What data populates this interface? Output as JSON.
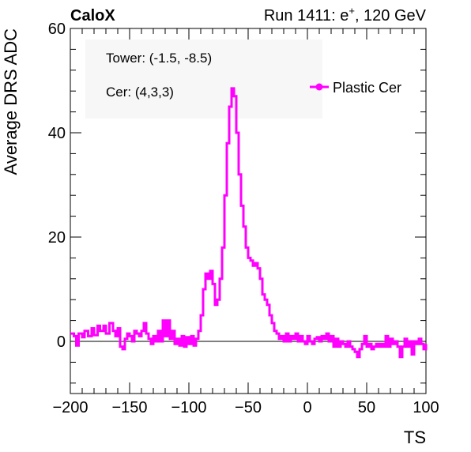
{
  "header": {
    "left": "CaloX",
    "run_prefix": "Run 1411: e",
    "run_sup": "+",
    "run_suffix": ", 120 GeV"
  },
  "annotations": {
    "tower": "Tower: (-1.5, -8.5)",
    "cer": "Cer: (4,3,3)"
  },
  "chart_data": {
    "type": "line",
    "title": "",
    "xlabel": "TS",
    "ylabel": "Average DRS ADC",
    "xlim": [
      -200,
      100
    ],
    "ylim": [
      -10,
      60
    ],
    "x_ticks": [
      -200,
      -150,
      -100,
      -50,
      0,
      50,
      100
    ],
    "x_tick_labels": [
      "−200",
      "−150",
      "−100",
      "−50",
      "0",
      "50",
      "100"
    ],
    "y_ticks": [
      0,
      20,
      40,
      60
    ],
    "y_tick_labels": [
      "0",
      "20",
      "40",
      "60"
    ],
    "legend_position": "top-right",
    "reference_line_y": 0,
    "series": [
      {
        "name": "Plastic Cer",
        "color": "#ff00ff",
        "points": [
          [
            -200,
            1.5
          ],
          [
            -197,
            1.0
          ],
          [
            -195,
            -0.8
          ],
          [
            -193,
            1.5
          ],
          [
            -190,
            0.8
          ],
          [
            -188,
            2.0
          ],
          [
            -185,
            1.0
          ],
          [
            -182,
            2.5
          ],
          [
            -180,
            1.2
          ],
          [
            -177,
            3.0
          ],
          [
            -175,
            2.0
          ],
          [
            -172,
            3.0
          ],
          [
            -170,
            1.5
          ],
          [
            -167,
            3.5
          ],
          [
            -164,
            2.0
          ],
          [
            -162,
            1.0
          ],
          [
            -160,
            2.5
          ],
          [
            -158,
            -1.0
          ],
          [
            -156,
            -1.5
          ],
          [
            -154,
            0.5
          ],
          [
            -152,
            1.5
          ],
          [
            -150,
            1.0
          ],
          [
            -148,
            0.0
          ],
          [
            -146,
            2.0
          ],
          [
            -144,
            1.5
          ],
          [
            -142,
            1.0
          ],
          [
            -140,
            2.0
          ],
          [
            -138,
            3.5
          ],
          [
            -136,
            1.5
          ],
          [
            -134,
            0.5
          ],
          [
            -132,
            -0.5
          ],
          [
            -130,
            1.0
          ],
          [
            -128,
            0.0
          ],
          [
            -126,
            2.0
          ],
          [
            -124,
            0.0
          ],
          [
            -122,
            4.0
          ],
          [
            -120,
            1.0
          ],
          [
            -118,
            4.0
          ],
          [
            -116,
            0.5
          ],
          [
            -114,
            2.0
          ],
          [
            -112,
            -0.5
          ],
          [
            -110,
            0.5
          ],
          [
            -108,
            -0.8
          ],
          [
            -106,
            1.0
          ],
          [
            -104,
            -1.0
          ],
          [
            -102,
            0.8
          ],
          [
            -100,
            -0.5
          ],
          [
            -98,
            1.0
          ],
          [
            -96,
            -0.8
          ],
          [
            -94,
            0.5
          ],
          [
            -92,
            2.0
          ],
          [
            -90,
            5.0
          ],
          [
            -88,
            10.0
          ],
          [
            -86,
            13.0
          ],
          [
            -84,
            12.0
          ],
          [
            -82,
            13.5
          ],
          [
            -80,
            11.0
          ],
          [
            -78,
            7.0
          ],
          [
            -76,
            8.0
          ],
          [
            -74,
            12.0
          ],
          [
            -72,
            18.0
          ],
          [
            -70,
            28.0
          ],
          [
            -68,
            38.0
          ],
          [
            -66,
            45.0
          ],
          [
            -64,
            48.5
          ],
          [
            -62,
            47.0
          ],
          [
            -60,
            40.0
          ],
          [
            -58,
            32.0
          ],
          [
            -56,
            26.0
          ],
          [
            -54,
            22.0
          ],
          [
            -52,
            18.0
          ],
          [
            -50,
            16.0
          ],
          [
            -48,
            15.5
          ],
          [
            -46,
            14.5
          ],
          [
            -44,
            15.0
          ],
          [
            -42,
            14.0
          ],
          [
            -40,
            12.0
          ],
          [
            -38,
            9.0
          ],
          [
            -36,
            8.0
          ],
          [
            -34,
            7.0
          ],
          [
            -32,
            5.0
          ],
          [
            -30,
            3.5
          ],
          [
            -28,
            2.0
          ],
          [
            -26,
            1.5
          ],
          [
            -24,
            0.5
          ],
          [
            -22,
            1.0
          ],
          [
            -20,
            0.0
          ],
          [
            -18,
            1.5
          ],
          [
            -16,
            0.0
          ],
          [
            -14,
            1.0
          ],
          [
            -12,
            0.5
          ],
          [
            -10,
            1.5
          ],
          [
            -8,
            0.0
          ],
          [
            -6,
            1.0
          ],
          [
            -4,
            0.0
          ],
          [
            -2,
            -0.5
          ],
          [
            0,
            1.0
          ],
          [
            2,
            0.0
          ],
          [
            4,
            -0.5
          ],
          [
            6,
            0.5
          ],
          [
            8,
            0.8
          ],
          [
            10,
            0.0
          ],
          [
            12,
            1.0
          ],
          [
            14,
            0.5
          ],
          [
            16,
            1.5
          ],
          [
            18,
            0.0
          ],
          [
            20,
            1.0
          ],
          [
            22,
            -1.0
          ],
          [
            24,
            0.5
          ],
          [
            26,
            -1.0
          ],
          [
            28,
            0.0
          ],
          [
            30,
            -0.5
          ],
          [
            32,
            -1.0
          ],
          [
            34,
            0.0
          ],
          [
            36,
            -1.0
          ],
          [
            38,
            -1.5
          ],
          [
            40,
            -2.0
          ],
          [
            42,
            -3.0
          ],
          [
            44,
            -1.5
          ],
          [
            46,
            -0.5
          ],
          [
            48,
            1.0
          ],
          [
            50,
            -1.0
          ],
          [
            52,
            -0.5
          ],
          [
            54,
            -1.5
          ],
          [
            56,
            -1.0
          ],
          [
            58,
            -0.5
          ],
          [
            60,
            -1.0
          ],
          [
            62,
            -0.5
          ],
          [
            64,
            -1.0
          ],
          [
            66,
            1.0
          ],
          [
            68,
            -1.0
          ],
          [
            70,
            0.5
          ],
          [
            72,
            -0.5
          ],
          [
            74,
            0.0
          ],
          [
            76,
            -1.0
          ],
          [
            78,
            -3.0
          ],
          [
            80,
            -1.0
          ],
          [
            82,
            0.5
          ],
          [
            84,
            -1.0
          ],
          [
            86,
            0.0
          ],
          [
            88,
            -2.5
          ],
          [
            90,
            0.0
          ],
          [
            92,
            -0.5
          ],
          [
            94,
            0.5
          ],
          [
            96,
            -0.5
          ],
          [
            98,
            -1.5
          ],
          [
            100,
            -0.5
          ]
        ]
      }
    ]
  }
}
